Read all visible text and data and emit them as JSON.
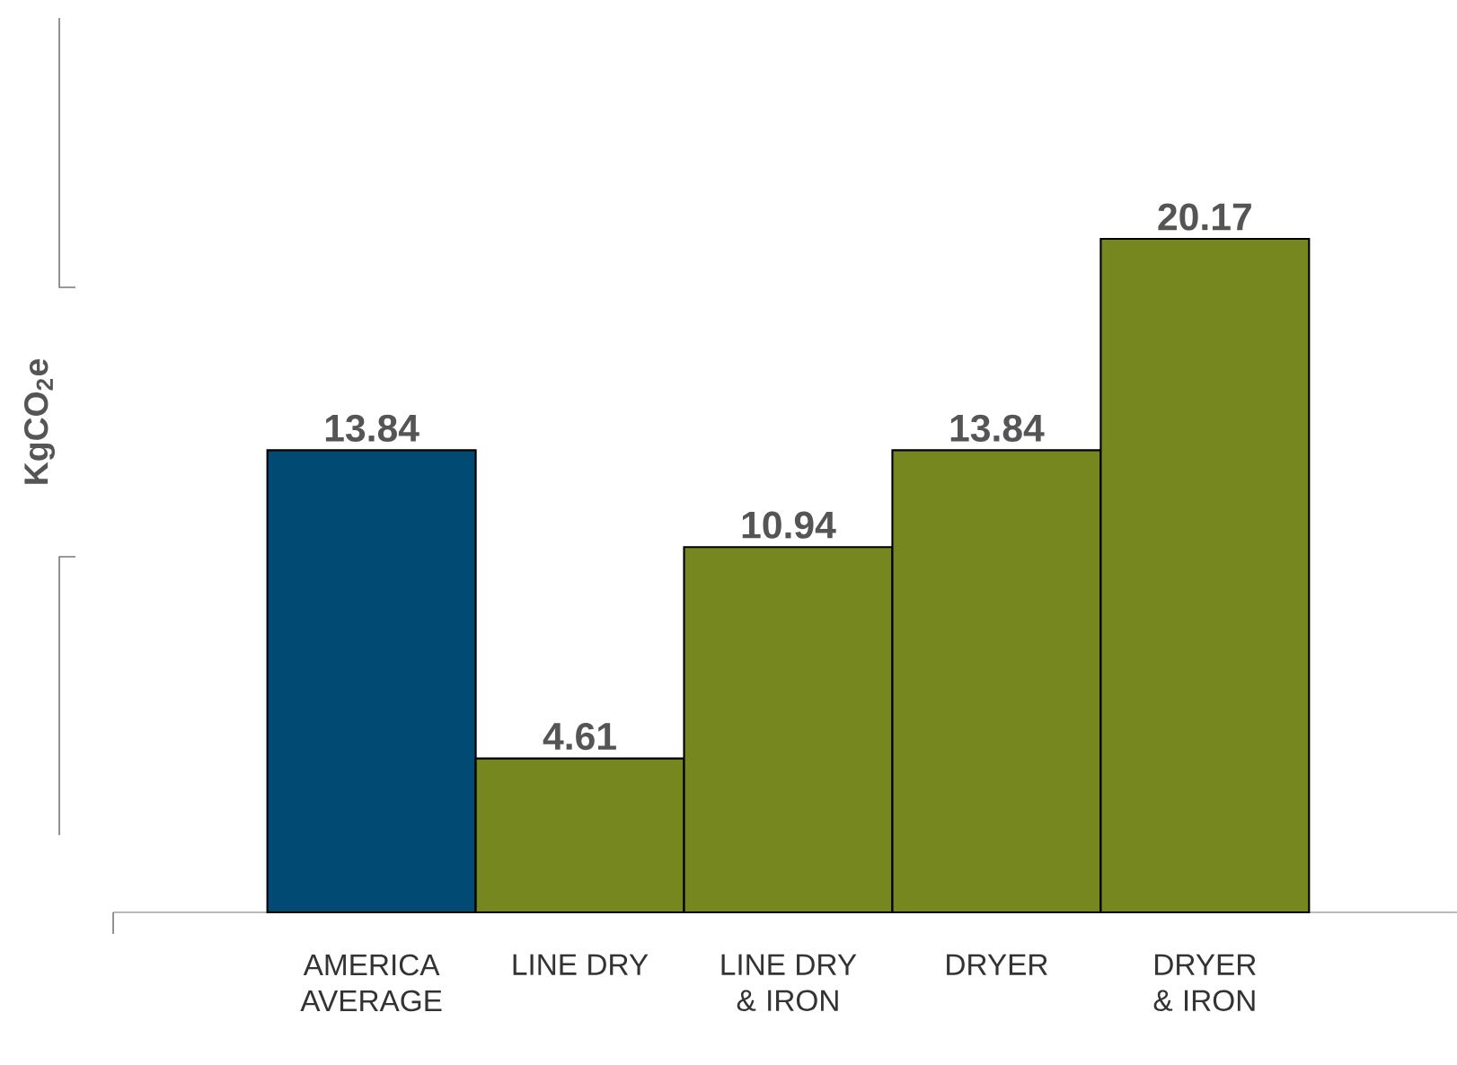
{
  "chart_data": {
    "type": "bar",
    "ylabel": "KgCO$_{2}$e",
    "categories": [
      "AMERICA AVERAGE",
      "LINE DRY",
      "LINE DRY & IRON",
      "DRYER",
      "DRYER & IRON"
    ],
    "values": [
      13.84,
      4.61,
      10.94,
      13.84,
      20.17
    ],
    "colors": [
      "#004a73",
      "#76871f",
      "#76871f",
      "#76871f",
      "#76871f"
    ],
    "data_labels": true
  }
}
